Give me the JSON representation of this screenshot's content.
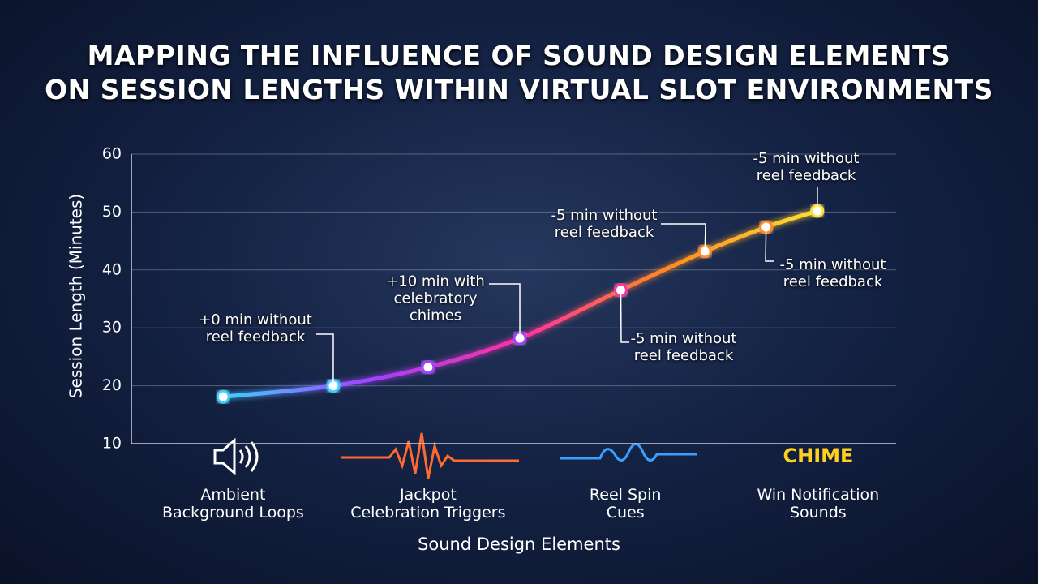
{
  "chart_data": {
    "type": "line",
    "title": "MAPPING THE INFLUENCE OF SOUND DESIGN ELEMENTS\nON SESSION LENGTHS WITHIN VIRTUAL SLOT ENVIRONMENTS",
    "x_label": "Sound Design Elements",
    "y_label": "Session Length (Minutes)",
    "xlim": [
      0,
      100
    ],
    "xticks": [
      {
        "value": 13.3,
        "label": "Ambient\nBackground Loops"
      },
      {
        "value": 38.8,
        "label": "Jackpot\nCelebration Triggers"
      },
      {
        "value": 64.6,
        "label": "Reel Spin\nCues"
      },
      {
        "value": 89.8,
        "label": "Win Notification\nSounds"
      }
    ],
    "ylim": [
      10,
      60
    ],
    "yticks": [
      10,
      20,
      30,
      40,
      50,
      60
    ],
    "grid": true,
    "series": [
      {
        "colors": [
          "#3cd0ff",
          "#a040ff",
          "#ff30a0",
          "#ff8a20",
          "#ffe030"
        ],
        "x": [
          12,
          26.4,
          38.8,
          50.8,
          64,
          75,
          83,
          89.7
        ],
        "values": [
          18.1,
          20,
          23.2,
          28.2,
          36.5,
          43.2,
          47.4,
          50.2
        ]
      }
    ],
    "annotations": [
      "+0 min without\nreel feedback",
      "+10 min with\ncelebratory\nchimes",
      "-5 min without\nreel feedback",
      "-5 min without\nreel feedback",
      "-5 min without\nreel feedback",
      "-5 min without\nreel feedback"
    ]
  }
}
